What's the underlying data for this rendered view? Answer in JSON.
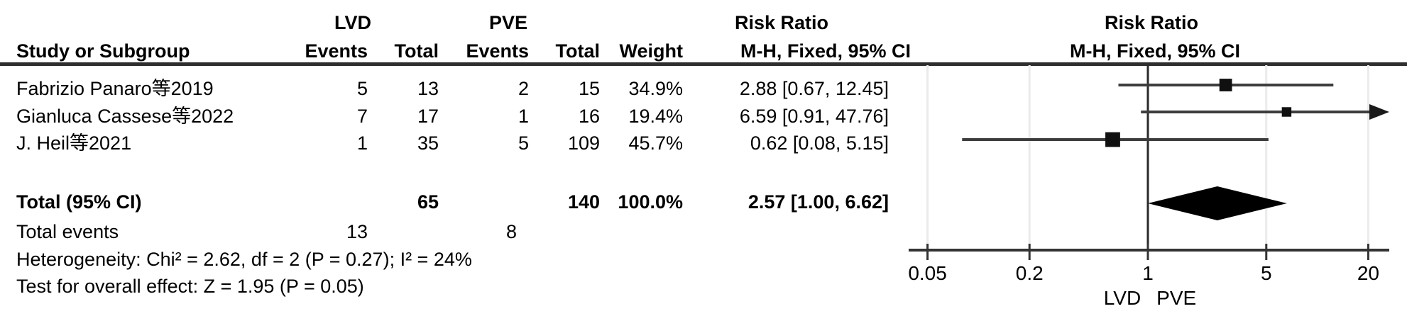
{
  "colors": {
    "text": "#000000",
    "rule": "#2e2e2e",
    "ci_line": "#3d3d3d",
    "marker": "#101010",
    "gridline": "#ebebeb"
  },
  "table": {
    "group1_header": "LVD",
    "group2_header": "PVE",
    "effect_header": "Risk Ratio",
    "columns": {
      "study": "Study or Subgroup",
      "events": "Events",
      "total": "Total",
      "weight": "Weight",
      "mh_fixed_ci": "M-H, Fixed, 95% CI"
    }
  },
  "plot_header": {
    "effect_header": "Risk Ratio",
    "mh_fixed_ci": "M-H, Fixed, 95% CI"
  },
  "chart_data": {
    "type": "forest",
    "scale": "log",
    "effect_measure": "Risk Ratio",
    "method": "Mantel-Haenszel Fixed effect, 95% CI",
    "x_ticks": [
      0.05,
      0.2,
      1,
      5,
      20
    ],
    "x_tick_labels": [
      "0.05",
      "0.2",
      "1",
      "5",
      "20"
    ],
    "xlim": [
      0.05,
      20
    ],
    "favours_left": "LVD",
    "favours_right": "PVE",
    "studies": [
      {
        "name": "Fabrizio Panaro等2019",
        "events_lvd": "5",
        "total_lvd": "13",
        "events_pve": "2",
        "total_pve": "15",
        "weight": "34.9%",
        "weight_pct": 34.9,
        "rr_ci": "2.88 [0.67, 12.45]",
        "rr": 2.88,
        "ci_low": 0.67,
        "ci_high": 12.45
      },
      {
        "name": "Gianluca Cassese等2022",
        "events_lvd": "7",
        "total_lvd": "17",
        "events_pve": "1",
        "total_pve": "16",
        "weight": "19.4%",
        "weight_pct": 19.4,
        "rr_ci": "6.59 [0.91, 47.76]",
        "rr": 6.59,
        "ci_low": 0.91,
        "ci_high": 47.76
      },
      {
        "name": "J. Heil等2021",
        "events_lvd": "1",
        "total_lvd": "35",
        "events_pve": "5",
        "total_pve": "109",
        "weight": "45.7%",
        "weight_pct": 45.7,
        "rr_ci": "0.62 [0.08, 5.15]",
        "rr": 0.62,
        "ci_low": 0.08,
        "ci_high": 5.15
      }
    ],
    "total": {
      "label": "Total (95% CI)",
      "total_lvd": "65",
      "total_pve": "140",
      "weight": "100.0%",
      "rr_ci": "2.57 [1.00, 6.62]",
      "rr": 2.57,
      "ci_low": 1.0,
      "ci_high": 6.62
    },
    "total_events": {
      "label": "Total events",
      "lvd": "13",
      "pve": "8"
    },
    "heterogeneity_text": "Heterogeneity: Chi² = 2.62, df = 2 (P = 0.27); I² = 24%",
    "heterogeneity": {
      "chi2": 2.62,
      "df": 2,
      "p": 0.27,
      "i2_pct": 24
    },
    "overall_effect_text": "Test for overall effect: Z = 1.95 (P = 0.05)",
    "overall_effect": {
      "z": 1.95,
      "p": 0.05
    }
  }
}
